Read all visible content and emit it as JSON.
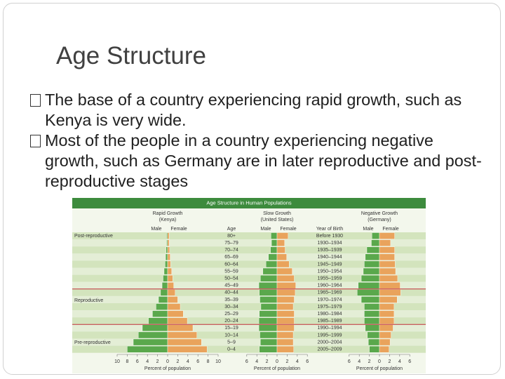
{
  "slide": {
    "title": "Age Structure",
    "bullets": [
      "The base of a country experiencing rapid growth, such as Kenya is very wide.",
      "Most of the people in a country experiencing negative growth, such as Germany are in later reproductive and post-reproductive stages"
    ]
  },
  "chart_data": {
    "type": "pyramid",
    "title": "Age Structure in Human Populations",
    "age_label": "Age",
    "year_label": "Year of Birth",
    "stage_labels": [
      "Post-reproductive",
      "Reproductive",
      "Pre-reproductive"
    ],
    "age_groups": [
      "80+",
      "75–79",
      "70–74",
      "65–69",
      "60–64",
      "55–59",
      "50–54",
      "45–49",
      "40–44",
      "35–39",
      "30–34",
      "25–29",
      "20–24",
      "15–19",
      "10–14",
      "5–9",
      "0–4"
    ],
    "years": [
      "Before 1930",
      "1930–1934",
      "1935–1939",
      "1940–1944",
      "1945–1949",
      "1950–1954",
      "1955–1959",
      "1960–1964",
      "1965–1969",
      "1970–1974",
      "1975–1979",
      "1980–1984",
      "1985–1989",
      "1990–1994",
      "1995–1999",
      "2000–2004",
      "2005–2009"
    ],
    "panels": [
      {
        "title": "Rapid Growth",
        "subtitle": "(Kenya)",
        "xlabel": "Percent of population",
        "xlim": [
          -10,
          10
        ],
        "xticks": [
          {
            "value": -10,
            "label": "10"
          },
          {
            "value": -8,
            "label": "8"
          },
          {
            "value": -6,
            "label": "6"
          },
          {
            "value": -4,
            "label": "4"
          },
          {
            "value": -2,
            "label": "2"
          },
          0,
          2,
          4,
          6,
          8,
          10
        ],
        "series": [
          {
            "name": "Male",
            "color": "#5aa84c",
            "values": [
              0.2,
              0.2,
              0.3,
              0.4,
              0.5,
              0.7,
              0.9,
              1.1,
              1.4,
              1.8,
              2.3,
              3.0,
              3.8,
              5.0,
              5.8,
              6.8,
              8.0
            ]
          },
          {
            "name": "Female",
            "color": "#e9a35c",
            "values": [
              0.3,
              0.3,
              0.4,
              0.5,
              0.6,
              0.8,
              1.0,
              1.2,
              1.5,
              2.0,
              2.5,
              3.1,
              3.9,
              5.0,
              5.8,
              6.7,
              7.8
            ]
          }
        ]
      },
      {
        "title": "Slow Growth",
        "subtitle": "(United States)",
        "xlabel": "Percent of population",
        "xlim": [
          -6,
          6
        ],
        "xticks": [
          {
            "value": -6,
            "label": "6"
          },
          {
            "value": -4,
            "label": "4"
          },
          {
            "value": -2,
            "label": "2"
          },
          0,
          2,
          4,
          6
        ],
        "series": [
          {
            "name": "Male",
            "color": "#5aa84c",
            "values": [
              1.2,
              1.1,
              1.3,
              1.7,
              2.2,
              2.8,
              3.3,
              3.6,
              3.5,
              3.4,
              3.2,
              3.5,
              3.6,
              3.6,
              3.4,
              3.3,
              3.5
            ]
          },
          {
            "name": "Female",
            "color": "#e9a35c",
            "values": [
              2.2,
              1.5,
              1.6,
              1.9,
              2.4,
              3.0,
              3.4,
              3.7,
              3.6,
              3.4,
              3.2,
              3.4,
              3.4,
              3.4,
              3.2,
              3.2,
              3.3
            ]
          }
        ]
      },
      {
        "title": "Negative Growth",
        "subtitle": "(Germany)",
        "xlabel": "Percent of population",
        "xlim": [
          -6,
          6
        ],
        "xticks": [
          {
            "value": -6,
            "label": "6"
          },
          {
            "value": -4,
            "label": "4"
          },
          {
            "value": -2,
            "label": "2"
          },
          0,
          2,
          4,
          6
        ],
        "series": [
          {
            "name": "Male",
            "color": "#5aa84c",
            "values": [
              1.5,
              1.6,
              2.5,
              2.8,
              3.0,
              3.2,
              3.6,
              4.2,
              4.4,
              3.6,
              3.0,
              3.0,
              3.0,
              2.8,
              2.4,
              2.2,
              2.0
            ]
          },
          {
            "name": "Female",
            "color": "#e9a35c",
            "values": [
              3.0,
              2.2,
              3.0,
              3.0,
              3.1,
              3.2,
              3.6,
              4.1,
              4.2,
              3.5,
              2.9,
              2.9,
              2.9,
              2.7,
              2.3,
              2.1,
              1.9
            ]
          }
        ]
      }
    ]
  }
}
